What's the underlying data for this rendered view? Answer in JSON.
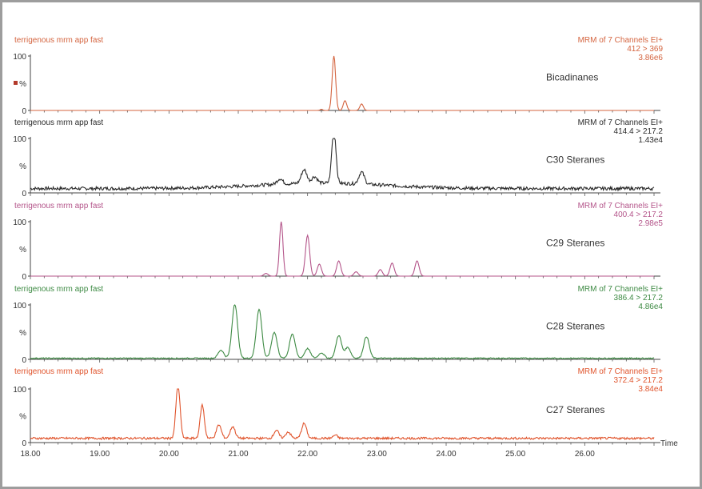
{
  "chart_data": {
    "type": "line",
    "x_axis": {
      "label": "Time",
      "range": [
        18.0,
        27.0
      ],
      "major_ticks": [
        18.0,
        19.0,
        20.0,
        21.0,
        22.0,
        23.0,
        24.0,
        25.0,
        26.0
      ],
      "tick_labels": [
        "18.00",
        "19.00",
        "20.00",
        "21.00",
        "22.00",
        "23.00",
        "24.00",
        "25.00",
        "26.00"
      ]
    },
    "y_axis": {
      "range": [
        0,
        100
      ],
      "tick_labels": [
        "100",
        "%",
        "0"
      ]
    },
    "panels": [
      {
        "title": "terrigenous mrm app fast",
        "header_lines": [
          "MRM of 7 Channels EI+",
          "412 > 369",
          "3.86e6"
        ],
        "name": "Bicadinanes",
        "color": "#d4643f",
        "baseline": 0,
        "noise": 0,
        "trace_range": [
          21.6,
          23.3
        ],
        "peaks": [
          [
            21.45,
            9,
            0.02
          ],
          [
            22.38,
            100,
            0.025
          ],
          [
            22.54,
            18,
            0.025
          ],
          [
            22.78,
            12,
            0.025
          ],
          [
            22.2,
            2,
            0.02
          ]
        ]
      },
      {
        "title": "terrigenous mrm app fast",
        "header_lines": [
          "MRM of 7 Channels EI+",
          "414.4 > 217.2",
          "1.43e4"
        ],
        "name": "C30 Steranes",
        "color": "#2a2a2a",
        "baseline": 8,
        "noise": 3,
        "hump": [
          22.2,
          10,
          1.3
        ],
        "peaks": [
          [
            21.95,
            25,
            0.04
          ],
          [
            22.38,
            100,
            0.03
          ],
          [
            22.78,
            22,
            0.04
          ],
          [
            21.6,
            10,
            0.04
          ],
          [
            22.1,
            12,
            0.04
          ]
        ]
      },
      {
        "title": "terrigenous mrm app fast",
        "header_lines": [
          "MRM of 7 Channels EI+",
          "400.4 > 217.2",
          "2.98e5"
        ],
        "name": "C29 Steranes",
        "color": "#b4558a",
        "baseline": 0,
        "noise": 0,
        "trace_range": [
          21.0,
          23.7
        ],
        "peaks": [
          [
            21.62,
            100,
            0.025
          ],
          [
            22.0,
            75,
            0.03
          ],
          [
            22.17,
            22,
            0.03
          ],
          [
            22.45,
            28,
            0.03
          ],
          [
            22.7,
            8,
            0.03
          ],
          [
            23.05,
            12,
            0.03
          ],
          [
            23.22,
            24,
            0.03
          ],
          [
            23.58,
            28,
            0.03
          ],
          [
            21.4,
            5,
            0.03
          ]
        ]
      },
      {
        "title": "terrigenous mrm app fast",
        "header_lines": [
          "MRM of 7 Channels EI+",
          "386.4 > 217.2",
          "4.86e4"
        ],
        "name": "C28 Steranes",
        "color": "#3d8a43",
        "baseline": 2,
        "noise": 1,
        "peaks": [
          [
            20.95,
            100,
            0.04
          ],
          [
            21.3,
            90,
            0.04
          ],
          [
            21.52,
            48,
            0.04
          ],
          [
            21.78,
            45,
            0.04
          ],
          [
            22.0,
            18,
            0.04
          ],
          [
            22.2,
            10,
            0.04
          ],
          [
            22.45,
            42,
            0.04
          ],
          [
            22.58,
            20,
            0.04
          ],
          [
            22.85,
            40,
            0.04
          ],
          [
            20.75,
            15,
            0.04
          ]
        ]
      },
      {
        "title": "terrigenous mrm app fast",
        "header_lines": [
          "MRM of 7 Channels EI+",
          "372.4 > 217.2",
          "3.84e4"
        ],
        "name": "C27 Steranes",
        "color": "#e0542c",
        "baseline": 8,
        "noise": 2,
        "peaks": [
          [
            20.13,
            100,
            0.03
          ],
          [
            20.48,
            62,
            0.03
          ],
          [
            20.72,
            25,
            0.035
          ],
          [
            20.92,
            22,
            0.035
          ],
          [
            21.55,
            15,
            0.035
          ],
          [
            21.72,
            12,
            0.035
          ],
          [
            21.95,
            28,
            0.035
          ],
          [
            22.4,
            6,
            0.03
          ]
        ]
      }
    ]
  }
}
